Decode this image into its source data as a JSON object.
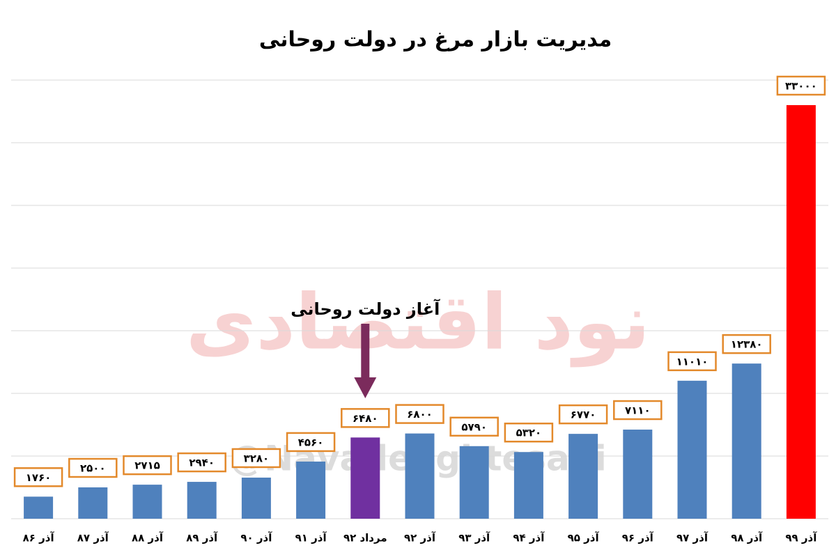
{
  "chart_data": {
    "type": "bar",
    "title": "مدیریت بازار مرغ در دولت روحانی",
    "categories": [
      "آذر ۸۶",
      "آذر ۸۷",
      "آذر ۸۸",
      "آذر ۸۹",
      "آذر ۹۰",
      "آذر ۹۱",
      "مرداد ۹۲",
      "آذر ۹۲",
      "آذر ۹۳",
      "آذر ۹۴",
      "آذر ۹۵",
      "آذر ۹۶",
      "آذر ۹۷",
      "آذر ۹۸",
      "آذر ۹۹"
    ],
    "values": [
      1760,
      2500,
      2715,
      2940,
      3280,
      4560,
      6480,
      6800,
      5790,
      5320,
      6770,
      7110,
      11010,
      12380,
      33000
    ],
    "value_labels": [
      "۱۷۶۰",
      "۲۵۰۰",
      "۲۷۱۵",
      "۲۹۴۰",
      "۳۲۸۰",
      "۴۵۶۰",
      "۶۴۸۰",
      "۶۸۰۰",
      "۵۷۹۰",
      "۵۳۲۰",
      "۶۷۷۰",
      "۷۱۱۰",
      "۱۱۰۱۰",
      "۱۲۳۸۰",
      "۳۳۰۰۰"
    ],
    "colors": [
      "#4f81bd",
      "#4f81bd",
      "#4f81bd",
      "#4f81bd",
      "#4f81bd",
      "#4f81bd",
      "#7030a0",
      "#4f81bd",
      "#4f81bd",
      "#4f81bd",
      "#4f81bd",
      "#4f81bd",
      "#4f81bd",
      "#4f81bd",
      "#ff0000"
    ],
    "ylim": [
      0,
      35000
    ],
    "yticks": [
      0,
      5000,
      10000,
      15000,
      20000,
      25000,
      30000,
      35000
    ],
    "grid": true,
    "annotation": "آغاز دولت روحانی",
    "watermarks": [
      "نود اقتصادی",
      "@NavadeEghtesadi"
    ]
  }
}
